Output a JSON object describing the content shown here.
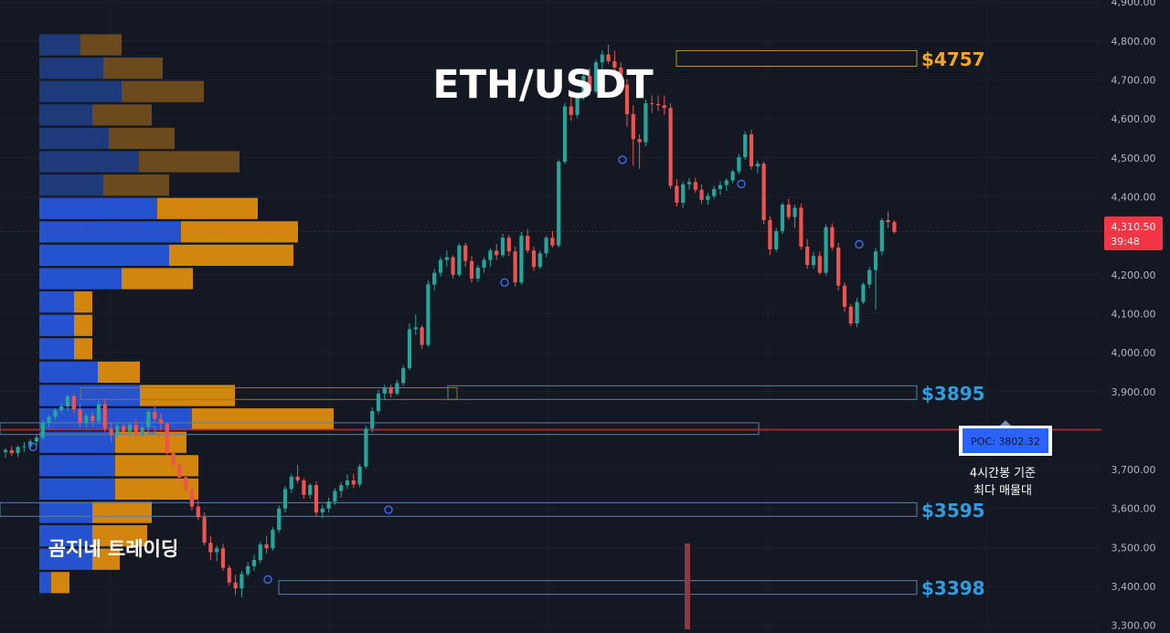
{
  "chart_data": {
    "type": "candlestick",
    "title": "ETH/USDT",
    "watermark": "곰지네 트레이딩",
    "ylim": [
      3290,
      4905
    ],
    "y_ticks": [
      {
        "v": 4900,
        "label": "4,900.00"
      },
      {
        "v": 4800,
        "label": "4,800.00"
      },
      {
        "v": 4700,
        "label": "4,700.00"
      },
      {
        "v": 4600,
        "label": "4,600.00"
      },
      {
        "v": 4500,
        "label": "4,500.00"
      },
      {
        "v": 4400,
        "label": "4,400.00"
      },
      {
        "v": 4200,
        "label": "4,200.00"
      },
      {
        "v": 4100,
        "label": "4,100.00"
      },
      {
        "v": 4000,
        "label": "4,000.00"
      },
      {
        "v": 3900,
        "label": "3,900.00"
      },
      {
        "v": 3700,
        "label": "3,700.00"
      },
      {
        "v": 3600,
        "label": "3,600.00"
      },
      {
        "v": 3500,
        "label": "3,500.00"
      },
      {
        "v": 3400,
        "label": "3,400.00"
      },
      {
        "v": 3300,
        "label": "3,300.00"
      }
    ],
    "current_price": {
      "value": 4310.5,
      "label": "4,310.50",
      "countdown": "39:48",
      "color": "#f23645"
    },
    "poc": {
      "value": 3802.32,
      "label": "POC: 3802.32",
      "note_line1": "4시간봉 기준",
      "note_line2": "최다 매물대",
      "line_color": "#e0191b"
    },
    "levels": [
      {
        "label": "$4757",
        "low": 4735,
        "high": 4775,
        "color": "#f5a623",
        "x_from": 740
      },
      {
        "label": "$3895",
        "low": 3880,
        "high": 3915,
        "color": "#2f9de0",
        "x_from": 490
      },
      {
        "label": "$3595",
        "low": 3580,
        "high": 3615,
        "color": "#2f9de0",
        "x_from": 0
      },
      {
        "label": "$3398",
        "low": 3380,
        "high": 3415,
        "color": "#2f9de0",
        "x_from": 305
      }
    ],
    "volume_profile_bins": [
      {
        "price": 4790,
        "buy": 45,
        "sell": 45
      },
      {
        "price": 4730,
        "buy": 70,
        "sell": 65
      },
      {
        "price": 4670,
        "buy": 90,
        "sell": 90
      },
      {
        "price": 4610,
        "buy": 58,
        "sell": 65
      },
      {
        "price": 4550,
        "buy": 76,
        "sell": 72
      },
      {
        "price": 4490,
        "buy": 109,
        "sell": 110
      },
      {
        "price": 4430,
        "buy": 70,
        "sell": 72
      },
      {
        "price": 4370,
        "buy": 129,
        "sell": 110
      },
      {
        "price": 4310,
        "buy": 155,
        "sell": 128
      },
      {
        "price": 4250,
        "buy": 142,
        "sell": 136
      },
      {
        "price": 4190,
        "buy": 90,
        "sell": 78
      },
      {
        "price": 4130,
        "buy": 38,
        "sell": 20
      },
      {
        "price": 4070,
        "buy": 38,
        "sell": 20
      },
      {
        "price": 4010,
        "buy": 38,
        "sell": 20
      },
      {
        "price": 3950,
        "buy": 64,
        "sell": 46
      },
      {
        "price": 3890,
        "buy": 110,
        "sell": 104
      },
      {
        "price": 3830,
        "buy": 167,
        "sell": 155
      },
      {
        "price": 3770,
        "buy": 83,
        "sell": 78
      },
      {
        "price": 3710,
        "buy": 83,
        "sell": 91
      },
      {
        "price": 3650,
        "buy": 83,
        "sell": 91
      },
      {
        "price": 3590,
        "buy": 58,
        "sell": 65
      },
      {
        "price": 3530,
        "buy": 58,
        "sell": 60
      },
      {
        "price": 3470,
        "buy": 58,
        "sell": 30
      },
      {
        "price": 3410,
        "buy": 13,
        "sell": 20
      }
    ],
    "candles": [
      [
        3745,
        3755,
        3730,
        3750
      ],
      [
        3750,
        3760,
        3735,
        3742
      ],
      [
        3742,
        3762,
        3732,
        3758
      ],
      [
        3758,
        3770,
        3745,
        3760
      ],
      [
        3760,
        3778,
        3750,
        3772
      ],
      [
        3772,
        3790,
        3762,
        3782
      ],
      [
        3782,
        3828,
        3776,
        3820
      ],
      [
        3820,
        3840,
        3808,
        3835
      ],
      [
        3835,
        3858,
        3828,
        3852
      ],
      [
        3852,
        3870,
        3845,
        3862
      ],
      [
        3862,
        3892,
        3850,
        3888
      ],
      [
        3888,
        3895,
        3845,
        3855
      ],
      [
        3855,
        3868,
        3808,
        3820
      ],
      [
        3820,
        3845,
        3808,
        3838
      ],
      [
        3838,
        3848,
        3810,
        3825
      ],
      [
        3825,
        3876,
        3818,
        3868
      ],
      [
        3868,
        3882,
        3795,
        3805
      ],
      [
        3805,
        3820,
        3772,
        3788
      ],
      [
        3788,
        3822,
        3780,
        3812
      ],
      [
        3812,
        3818,
        3790,
        3798
      ],
      [
        3798,
        3820,
        3785,
        3815
      ],
      [
        3815,
        3830,
        3785,
        3792
      ],
      [
        3792,
        3815,
        3785,
        3808
      ],
      [
        3808,
        3855,
        3800,
        3848
      ],
      [
        3848,
        3870,
        3820,
        3830
      ],
      [
        3830,
        3845,
        3800,
        3818
      ],
      [
        3818,
        3820,
        3738,
        3742
      ],
      [
        3742,
        3750,
        3705,
        3712
      ],
      [
        3712,
        3718,
        3670,
        3680
      ],
      [
        3680,
        3688,
        3640,
        3648
      ],
      [
        3648,
        3655,
        3595,
        3605
      ],
      [
        3605,
        3620,
        3570,
        3578
      ],
      [
        3578,
        3590,
        3505,
        3512
      ],
      [
        3512,
        3530,
        3468,
        3488
      ],
      [
        3488,
        3505,
        3465,
        3498
      ],
      [
        3498,
        3510,
        3440,
        3448
      ],
      [
        3448,
        3455,
        3402,
        3410
      ],
      [
        3410,
        3430,
        3378,
        3395
      ],
      [
        3395,
        3440,
        3372,
        3432
      ],
      [
        3432,
        3462,
        3425,
        3452
      ],
      [
        3452,
        3482,
        3440,
        3468
      ],
      [
        3468,
        3515,
        3460,
        3508
      ],
      [
        3508,
        3530,
        3485,
        3498
      ],
      [
        3498,
        3552,
        3492,
        3545
      ],
      [
        3545,
        3608,
        3538,
        3600
      ],
      [
        3600,
        3658,
        3590,
        3650
      ],
      [
        3650,
        3690,
        3640,
        3682
      ],
      [
        3682,
        3712,
        3665,
        3672
      ],
      [
        3672,
        3678,
        3625,
        3635
      ],
      [
        3635,
        3665,
        3625,
        3660
      ],
      [
        3660,
        3670,
        3580,
        3590
      ],
      [
        3590,
        3610,
        3575,
        3600
      ],
      [
        3600,
        3628,
        3590,
        3618
      ],
      [
        3618,
        3652,
        3610,
        3645
      ],
      [
        3645,
        3668,
        3628,
        3660
      ],
      [
        3660,
        3688,
        3650,
        3672
      ],
      [
        3672,
        3690,
        3652,
        3662
      ],
      [
        3662,
        3715,
        3655,
        3708
      ],
      [
        3708,
        3812,
        3702,
        3805
      ],
      [
        3805,
        3860,
        3795,
        3850
      ],
      [
        3850,
        3905,
        3842,
        3895
      ],
      [
        3895,
        3918,
        3878,
        3910
      ],
      [
        3910,
        3918,
        3885,
        3895
      ],
      [
        3895,
        3930,
        3890,
        3922
      ],
      [
        3922,
        3968,
        3915,
        3960
      ],
      [
        3960,
        4075,
        3955,
        4060
      ],
      [
        4060,
        4098,
        4045,
        4065
      ],
      [
        4065,
        4070,
        4010,
        4020
      ],
      [
        4020,
        4185,
        4015,
        4175
      ],
      [
        4175,
        4215,
        4160,
        4205
      ],
      [
        4205,
        4245,
        4195,
        4238
      ],
      [
        4238,
        4262,
        4220,
        4245
      ],
      [
        4245,
        4250,
        4190,
        4200
      ],
      [
        4200,
        4280,
        4195,
        4275
      ],
      [
        4275,
        4282,
        4220,
        4235
      ],
      [
        4235,
        4248,
        4180,
        4190
      ],
      [
        4190,
        4225,
        4182,
        4218
      ],
      [
        4218,
        4245,
        4205,
        4238
      ],
      [
        4238,
        4268,
        4220,
        4262
      ],
      [
        4262,
        4278,
        4238,
        4250
      ],
      [
        4250,
        4305,
        4245,
        4295
      ],
      [
        4295,
        4302,
        4248,
        4260
      ],
      [
        4260,
        4272,
        4170,
        4180
      ],
      [
        4180,
        4310,
        4175,
        4300
      ],
      [
        4300,
        4318,
        4255,
        4262
      ],
      [
        4262,
        4272,
        4210,
        4220
      ],
      [
        4220,
        4262,
        4215,
        4255
      ],
      [
        4255,
        4300,
        4245,
        4295
      ],
      [
        4295,
        4312,
        4270,
        4275
      ],
      [
        4275,
        4495,
        4270,
        4490
      ],
      [
        4490,
        4640,
        4484,
        4632
      ],
      [
        4632,
        4665,
        4595,
        4610
      ],
      [
        4610,
        4665,
        4602,
        4655
      ],
      [
        4655,
        4718,
        4648,
        4710
      ],
      [
        4710,
        4730,
        4660,
        4670
      ],
      [
        4670,
        4752,
        4665,
        4745
      ],
      [
        4745,
        4775,
        4728,
        4765
      ],
      [
        4765,
        4790,
        4742,
        4748
      ],
      [
        4748,
        4775,
        4722,
        4732
      ],
      [
        4732,
        4745,
        4675,
        4688
      ],
      [
        4688,
        4702,
        4580,
        4612
      ],
      [
        4612,
        4635,
        4480,
        4548
      ],
      [
        4548,
        4560,
        4472,
        4540
      ],
      [
        4540,
        4650,
        4530,
        4640
      ],
      [
        4640,
        4660,
        4615,
        4638
      ],
      [
        4638,
        4660,
        4620,
        4635
      ],
      [
        4635,
        4660,
        4610,
        4628
      ],
      [
        4628,
        4640,
        4420,
        4428
      ],
      [
        4428,
        4445,
        4375,
        4385
      ],
      [
        4385,
        4440,
        4372,
        4432
      ],
      [
        4432,
        4448,
        4418,
        4438
      ],
      [
        4438,
        4450,
        4410,
        4418
      ],
      [
        4418,
        4432,
        4382,
        4392
      ],
      [
        4392,
        4410,
        4380,
        4402
      ],
      [
        4402,
        4428,
        4395,
        4420
      ],
      [
        4420,
        4440,
        4405,
        4430
      ],
      [
        4430,
        4448,
        4415,
        4442
      ],
      [
        4442,
        4470,
        4435,
        4465
      ],
      [
        4465,
        4510,
        4458,
        4502
      ],
      [
        4502,
        4568,
        4495,
        4560
      ],
      [
        4560,
        4572,
        4470,
        4478
      ],
      [
        4478,
        4492,
        4460,
        4485
      ],
      [
        4485,
        4490,
        4330,
        4340
      ],
      [
        4340,
        4350,
        4250,
        4265
      ],
      [
        4265,
        4320,
        4258,
        4312
      ],
      [
        4312,
        4385,
        4305,
        4380
      ],
      [
        4380,
        4395,
        4340,
        4348
      ],
      [
        4348,
        4380,
        4320,
        4372
      ],
      [
        4372,
        4382,
        4265,
        4272
      ],
      [
        4272,
        4292,
        4215,
        4225
      ],
      [
        4225,
        4258,
        4215,
        4248
      ],
      [
        4248,
        4260,
        4200,
        4205
      ],
      [
        4205,
        4330,
        4198,
        4322
      ],
      [
        4322,
        4332,
        4262,
        4270
      ],
      [
        4270,
        4282,
        4160,
        4172
      ],
      [
        4172,
        4180,
        4105,
        4118
      ],
      [
        4118,
        4125,
        4068,
        4075
      ],
      [
        4075,
        4140,
        4065,
        4130
      ],
      [
        4130,
        4180,
        4125,
        4175
      ],
      [
        4175,
        4220,
        4165,
        4212
      ],
      [
        4212,
        4268,
        4110,
        4260
      ],
      [
        4260,
        4345,
        4250,
        4340
      ],
      [
        4340,
        4362,
        4320,
        4335
      ],
      [
        4335,
        4340,
        4305,
        4310
      ]
    ]
  }
}
